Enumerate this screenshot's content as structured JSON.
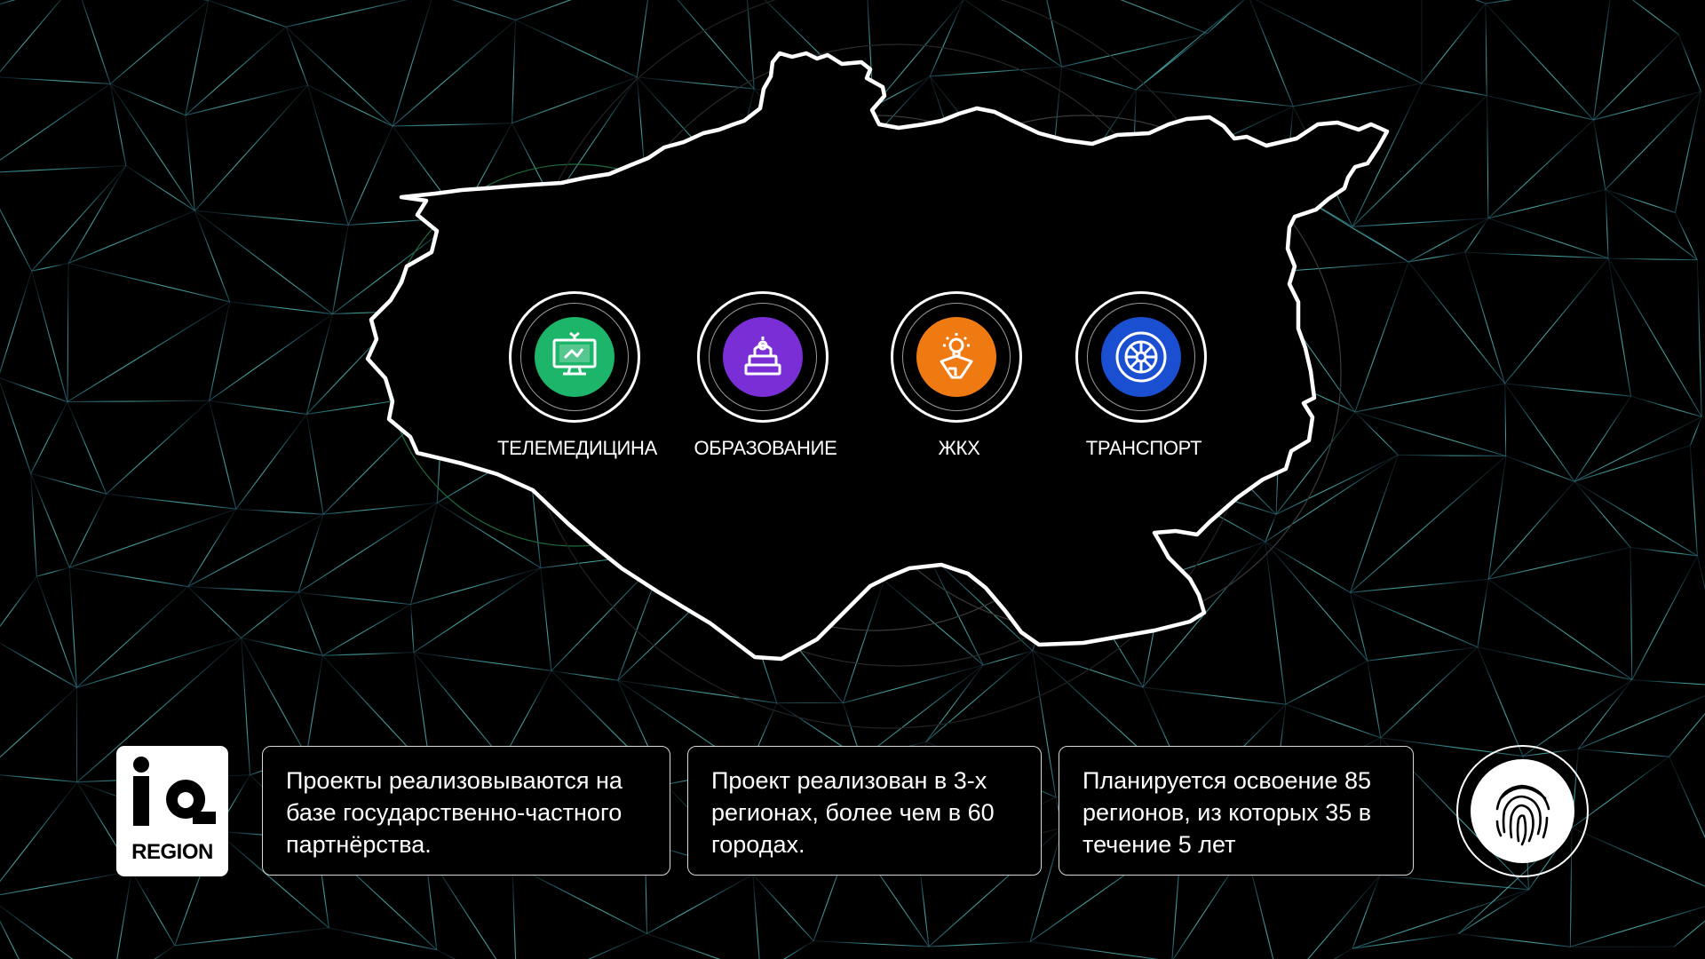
{
  "categories": [
    {
      "label": "ТЕЛЕМЕДИЦИНА",
      "icon": "telemedicine-monitor-icon",
      "color": "#1db56a"
    },
    {
      "label": "ОБРАЗОВАНИЕ",
      "icon": "books-lamp-icon",
      "color": "#7a2fd6"
    },
    {
      "label": "ЖКХ",
      "icon": "lightbulb-house-icon",
      "color": "#f07a12"
    },
    {
      "label": "ТРАНСПОРТ",
      "icon": "wheel-icon",
      "color": "#1a4fd1"
    }
  ],
  "cards": [
    {
      "text": "Проекты реализовываются на базе государственно-частного партнёрства."
    },
    {
      "text": "Проект реализован в 3-х регионах, более чем в 60 городах."
    },
    {
      "text": "Планируется освоение 85 регионов, из которых 35 в течение 5 лет"
    }
  ],
  "logo": {
    "big": "iq",
    "word": "REGION"
  },
  "fingerprint": {
    "icon": "fingerprint-icon"
  },
  "colors": {
    "background": "#000000",
    "mesh": "#5fd6c8",
    "outline": "#ffffff"
  }
}
